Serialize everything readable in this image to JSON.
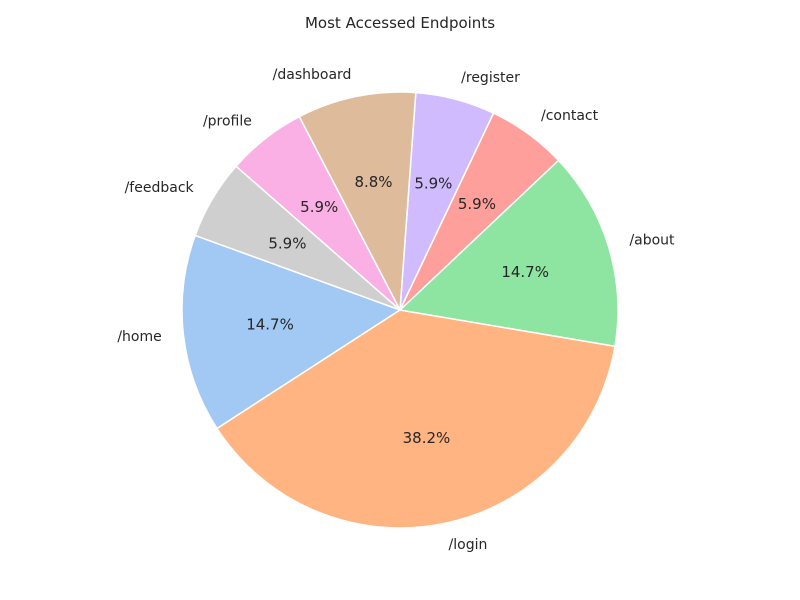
{
  "chart_data": {
    "type": "pie",
    "title": "Most Accessed Endpoints",
    "start_angle_deg": 160,
    "direction": "counterclockwise",
    "slices": [
      {
        "label": "/home",
        "value": 14.7,
        "pct_text": "14.7%",
        "color": "#a1c9f4"
      },
      {
        "label": "/login",
        "value": 38.2,
        "pct_text": "38.2%",
        "color": "#ffb482"
      },
      {
        "label": "/about",
        "value": 14.7,
        "pct_text": "14.7%",
        "color": "#8de5a1"
      },
      {
        "label": "/contact",
        "value": 5.9,
        "pct_text": "5.9%",
        "color": "#ff9f9b"
      },
      {
        "label": "/register",
        "value": 5.9,
        "pct_text": "5.9%",
        "color": "#d0bbff"
      },
      {
        "label": "/dashboard",
        "value": 8.8,
        "pct_text": "8.8%",
        "color": "#debb9b"
      },
      {
        "label": "/profile",
        "value": 5.9,
        "pct_text": "5.9%",
        "color": "#fab0e4"
      },
      {
        "label": "/feedback",
        "value": 5.9,
        "pct_text": "5.9%",
        "color": "#cfcfcf"
      }
    ]
  }
}
